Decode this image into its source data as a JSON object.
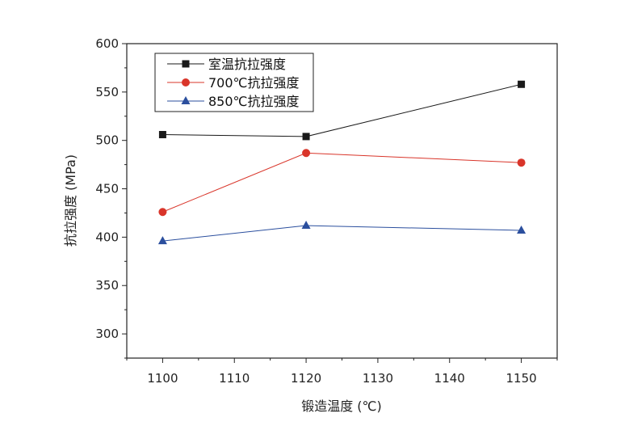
{
  "chart_data": {
    "type": "line",
    "title": "",
    "xlabel": "锻造温度 (℃)",
    "ylabel": "抗拉强度 (MPa)",
    "xlim": [
      1095,
      1155
    ],
    "ylim": [
      275,
      600
    ],
    "x_ticks": [
      1100,
      1110,
      1120,
      1130,
      1140,
      1150
    ],
    "y_ticks": [
      300,
      350,
      400,
      450,
      500,
      550,
      600
    ],
    "x_tick_labels": [
      "1100",
      "1110",
      "1120",
      "1130",
      "1140",
      "1150"
    ],
    "y_tick_labels": [
      "300",
      "350",
      "400",
      "450",
      "500",
      "550",
      "600"
    ],
    "grid": false,
    "legend_position": "top-left",
    "x": [
      1100,
      1120,
      1150
    ],
    "series": [
      {
        "name": "室温抗拉强度",
        "values": [
          506,
          504,
          558
        ],
        "color": "#1a1a1a",
        "marker": "square"
      },
      {
        "name": "700℃抗拉强度",
        "values": [
          426,
          487,
          477
        ],
        "color": "#d9352a",
        "marker": "circle"
      },
      {
        "name": "850℃抗拉强度",
        "values": [
          396,
          412,
          407
        ],
        "color": "#2b4f9e",
        "marker": "triangle"
      }
    ]
  }
}
